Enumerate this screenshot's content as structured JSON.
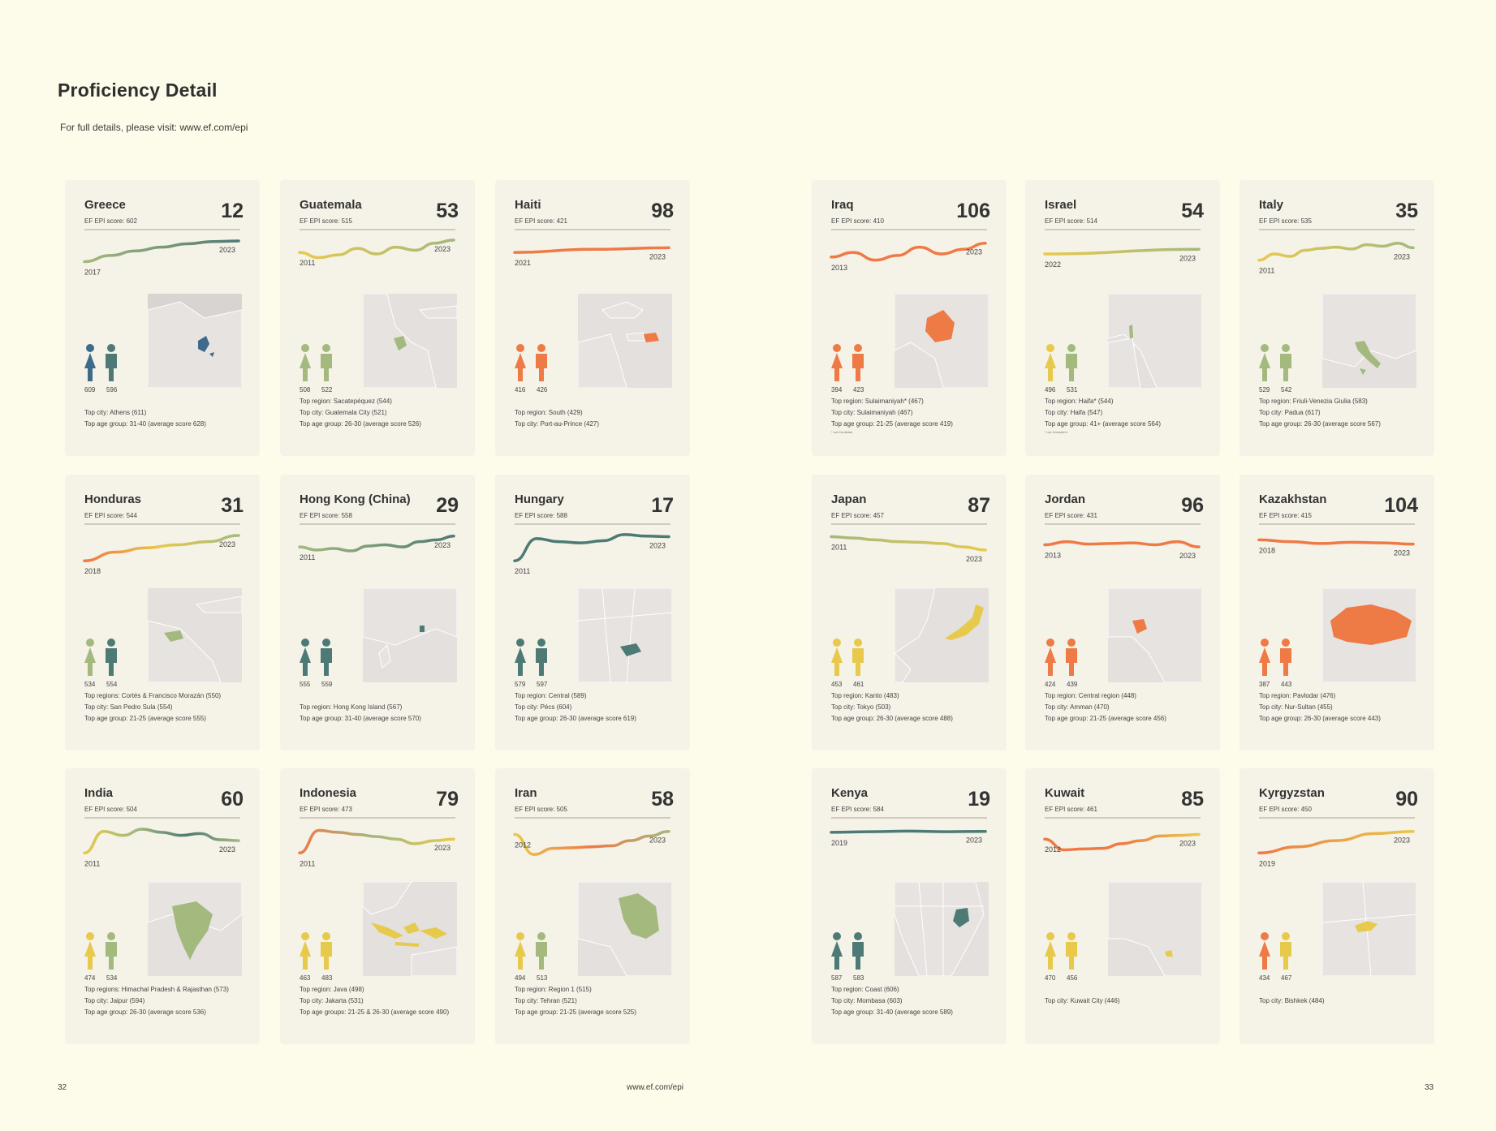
{
  "header": {
    "title": "Proficiency Detail",
    "subtitle": "For full details, please visit: www.ef.com/epi"
  },
  "footer": {
    "page_left": "32",
    "url": "www.ef.com/epi",
    "page_right": "33"
  },
  "colors": {
    "dark_teal": "#4e7a75",
    "blue": "#3e6b8a",
    "green": "#a3b97d",
    "yellow": "#e7c94c",
    "orange": "#ee7a45",
    "card_bg": "#f5f2e7",
    "map_land": "#e3e0de"
  },
  "cards": [
    {
      "id": "greece",
      "name": "Greece",
      "score": "EF EPI score: 602",
      "rank": "12",
      "start_year": "2017",
      "end_year": "2023",
      "trend_levels": [
        0.25,
        0.45,
        0.6,
        0.72,
        0.83,
        0.9,
        0.92
      ],
      "trend_colors": [
        "green",
        "dark_teal"
      ],
      "female": "609",
      "male": "596",
      "female_color": "blue",
      "male_color": "dark_teal",
      "highlight_color": "blue",
      "info": [
        "Top city: Athens (611)",
        "Top age group: 31-40 (average score 628)"
      ],
      "note": ""
    },
    {
      "id": "guatemala",
      "name": "Guatemala",
      "score": "EF EPI score: 515",
      "rank": "53",
      "start_year": "2011",
      "end_year": "2023",
      "trend_levels": [
        0.55,
        0.38,
        0.47,
        0.68,
        0.5,
        0.72,
        0.62,
        0.85,
        0.95
      ],
      "trend_colors": [
        "yellow",
        "green"
      ],
      "female": "508",
      "male": "522",
      "female_color": "green",
      "male_color": "green",
      "highlight_color": "green",
      "info": [
        "Top region: Sacatepéquez (544)",
        "Top city: Guatemala City (521)",
        "Top age group: 26-30 (average score 526)"
      ],
      "note": ""
    },
    {
      "id": "haiti",
      "name": "Haiti",
      "score": "EF EPI score: 421",
      "rank": "98",
      "start_year": "2021",
      "end_year": "2023",
      "trend_levels": [
        0.55,
        0.65,
        0.7
      ],
      "trend_colors": [
        "orange",
        "orange"
      ],
      "female": "416",
      "male": "426",
      "female_color": "orange",
      "male_color": "orange",
      "highlight_color": "orange",
      "info": [
        "Top region: South (429)",
        "Top city: Port-au-Prince (427)"
      ],
      "note": ""
    },
    {
      "id": "iraq",
      "name": "Iraq",
      "score": "EF EPI score: 410",
      "rank": "106",
      "start_year": "2013",
      "end_year": "2023",
      "trend_levels": [
        0.4,
        0.55,
        0.3,
        0.45,
        0.72,
        0.5,
        0.65,
        0.85
      ],
      "trend_colors": [
        "orange",
        "orange"
      ],
      "female": "394",
      "male": "423",
      "female_color": "orange",
      "male_color": "orange",
      "highlight_color": "orange",
      "info": [
        "Top region: Sulaimaniyah* (467)",
        "Top city: Sulaimaniyah (467)",
        "Top age group: 21-25 (average score 419)"
      ],
      "note": "* not Kurdistan"
    },
    {
      "id": "israel",
      "name": "Israel",
      "score": "EF EPI score: 514",
      "rank": "54",
      "start_year": "2022",
      "end_year": "2023",
      "trend_levels": [
        0.5,
        0.65
      ],
      "trend_colors": [
        "yellow",
        "green"
      ],
      "female": "496",
      "male": "531",
      "female_color": "yellow",
      "male_color": "green",
      "highlight_color": "green",
      "info": [
        "Top region: Haifa* (544)",
        "Top city: Haifa (547)",
        "Top age group: 41+ (average score 564)"
      ],
      "note": "* not Jerusalem"
    },
    {
      "id": "italy",
      "name": "Italy",
      "score": "EF EPI score: 535",
      "rank": "35",
      "start_year": "2011",
      "end_year": "2023",
      "trend_levels": [
        0.3,
        0.5,
        0.42,
        0.62,
        0.68,
        0.72,
        0.66,
        0.8,
        0.75,
        0.85,
        0.7
      ],
      "trend_colors": [
        "yellow",
        "green"
      ],
      "female": "529",
      "male": "542",
      "female_color": "green",
      "male_color": "green",
      "highlight_color": "green",
      "info": [
        "Top region: Friuli-Venezia Giulia (583)",
        "Top city: Padua (617)",
        "Top age group: 26-30 (average score 567)"
      ],
      "note": ""
    },
    {
      "id": "honduras",
      "name": "Honduras",
      "score": "EF EPI score: 544",
      "rank": "31",
      "start_year": "2018",
      "end_year": "2023",
      "trend_levels": [
        0.1,
        0.38,
        0.52,
        0.62,
        0.72,
        0.92
      ],
      "trend_colors": [
        "orange",
        "yellow",
        "green"
      ],
      "female": "534",
      "male": "554",
      "female_color": "green",
      "male_color": "dark_teal",
      "highlight_color": "green",
      "info": [
        "Top regions: Cortés & Francisco Morazán (550)",
        "Top city: San Pedro Sula (554)",
        "Top age group: 21-25 (average score 555)"
      ],
      "note": ""
    },
    {
      "id": "hongkong",
      "name": "Hong Kong (China)",
      "score": "EF EPI score: 558",
      "rank": "29",
      "start_year": "2011",
      "end_year": "2023",
      "trend_levels": [
        0.55,
        0.45,
        0.5,
        0.42,
        0.58,
        0.62,
        0.55,
        0.72,
        0.78,
        0.9
      ],
      "trend_colors": [
        "green",
        "dark_teal"
      ],
      "female": "555",
      "male": "559",
      "female_color": "dark_teal",
      "male_color": "dark_teal",
      "highlight_color": "dark_teal",
      "info": [
        "Top region: Hong Kong Island (567)",
        "Top age group: 31-40 (average score 570)"
      ],
      "note": ""
    },
    {
      "id": "hungary",
      "name": "Hungary",
      "score": "EF EPI score: 588",
      "rank": "17",
      "start_year": "2011",
      "end_year": "2023",
      "trend_levels": [
        0.1,
        0.82,
        0.72,
        0.68,
        0.75,
        0.95,
        0.9,
        0.88
      ],
      "trend_colors": [
        "dark_teal",
        "dark_teal"
      ],
      "female": "579",
      "male": "597",
      "female_color": "dark_teal",
      "male_color": "dark_teal",
      "highlight_color": "dark_teal",
      "info": [
        "Top region: Central (589)",
        "Top city: Pécs (604)",
        "Top age group: 26-30 (average score 619)"
      ],
      "note": ""
    },
    {
      "id": "japan",
      "name": "Japan",
      "score": "EF EPI score: 457",
      "rank": "87",
      "start_year": "2011",
      "end_year": "2023",
      "trend_levels": [
        0.88,
        0.84,
        0.78,
        0.72,
        0.7,
        0.66,
        0.55,
        0.45
      ],
      "trend_colors": [
        "green",
        "yellow"
      ],
      "female": "453",
      "male": "461",
      "female_color": "yellow",
      "male_color": "yellow",
      "highlight_color": "yellow",
      "info": [
        "Top region: Kanto (483)",
        "Top city: Tokyo (503)",
        "Top age group: 26-30 (average score 488)"
      ],
      "note": ""
    },
    {
      "id": "jordan",
      "name": "Jordan",
      "score": "EF EPI score: 431",
      "rank": "96",
      "start_year": "2013",
      "end_year": "2023",
      "trend_levels": [
        0.62,
        0.72,
        0.64,
        0.66,
        0.68,
        0.62,
        0.72,
        0.55
      ],
      "trend_colors": [
        "orange",
        "orange"
      ],
      "female": "424",
      "male": "439",
      "female_color": "orange",
      "male_color": "orange",
      "highlight_color": "orange",
      "info": [
        "Top region: Central region (448)",
        "Top city: Amman (470)",
        "Top age group: 21-25 (average score 456)"
      ],
      "note": ""
    },
    {
      "id": "kazakhstan",
      "name": "Kazakhstan",
      "score": "EF EPI score: 415",
      "rank": "104",
      "start_year": "2018",
      "end_year": "2023",
      "trend_levels": [
        0.78,
        0.72,
        0.66,
        0.7,
        0.68,
        0.64
      ],
      "trend_colors": [
        "orange",
        "orange"
      ],
      "female": "387",
      "male": "443",
      "female_color": "orange",
      "male_color": "orange",
      "highlight_color": "orange",
      "info": [
        "Top region: Pavlodar (476)",
        "Top city: Nur-Sultan (455)",
        "Top age group: 26-30 (average score 443)"
      ],
      "note": ""
    },
    {
      "id": "india",
      "name": "India",
      "score": "EF EPI score: 504",
      "rank": "60",
      "start_year": "2011",
      "end_year": "2023",
      "trend_levels": [
        0.15,
        0.85,
        0.72,
        0.92,
        0.82,
        0.72,
        0.78,
        0.58,
        0.55
      ],
      "trend_colors": [
        "yellow",
        "green",
        "dark_teal",
        "green"
      ],
      "female": "474",
      "male": "534",
      "female_color": "yellow",
      "male_color": "green",
      "highlight_color": "green",
      "info": [
        "Top regions: Himachal Pradesh & Rajasthan (573)",
        "Top city: Jaipur (594)",
        "Top age group: 26-30 (average score 536)"
      ],
      "note": ""
    },
    {
      "id": "indonesia",
      "name": "Indonesia",
      "score": "EF EPI score: 473",
      "rank": "79",
      "start_year": "2011",
      "end_year": "2023",
      "trend_levels": [
        0.15,
        0.88,
        0.82,
        0.75,
        0.68,
        0.6,
        0.45,
        0.55,
        0.6
      ],
      "trend_colors": [
        "orange",
        "green",
        "yellow"
      ],
      "female": "463",
      "male": "483",
      "female_color": "yellow",
      "male_color": "yellow",
      "highlight_color": "yellow",
      "info": [
        "Top region: Java (498)",
        "Top city: Jakarta (531)",
        "Top age groups: 21-25 & 26-30 (average score 490)"
      ],
      "note": ""
    },
    {
      "id": "iran",
      "name": "Iran",
      "score": "EF EPI score: 505",
      "rank": "58",
      "start_year": "2012",
      "end_year": "2023",
      "trend_levels": [
        0.75,
        0.1,
        0.3,
        0.32,
        0.35,
        0.38,
        0.55,
        0.7,
        0.85
      ],
      "trend_colors": [
        "yellow",
        "orange",
        "green"
      ],
      "female": "494",
      "male": "513",
      "female_color": "yellow",
      "male_color": "green",
      "highlight_color": "green",
      "info": [
        "Top region: Region 1 (515)",
        "Top city: Tehran (521)",
        "Top age group: 21-25 (average score 525)"
      ],
      "note": ""
    },
    {
      "id": "kenya",
      "name": "Kenya",
      "score": "EF EPI score: 584",
      "rank": "19",
      "start_year": "2019",
      "end_year": "2023",
      "trend_levels": [
        0.82,
        0.84,
        0.86,
        0.84,
        0.85
      ],
      "trend_colors": [
        "dark_teal",
        "dark_teal"
      ],
      "female": "587",
      "male": "583",
      "female_color": "dark_teal",
      "male_color": "dark_teal",
      "highlight_color": "dark_teal",
      "info": [
        "Top region: Coast (606)",
        "Top city: Mombasa (603)",
        "Top age group: 31-40 (average score 589)"
      ],
      "note": ""
    },
    {
      "id": "kuwait",
      "name": "Kuwait",
      "score": "EF EPI score: 461",
      "rank": "85",
      "start_year": "2012",
      "end_year": "2023",
      "trend_levels": [
        0.6,
        0.25,
        0.28,
        0.3,
        0.45,
        0.55,
        0.7,
        0.72,
        0.75
      ],
      "trend_colors": [
        "orange",
        "orange",
        "yellow"
      ],
      "female": "470",
      "male": "456",
      "female_color": "yellow",
      "male_color": "yellow",
      "highlight_color": "yellow",
      "info": [
        "Top city: Kuwait City (446)"
      ],
      "note": ""
    },
    {
      "id": "kyrgyzstan",
      "name": "Kyrgyzstan",
      "score": "EF EPI score: 450",
      "rank": "90",
      "start_year": "2019",
      "end_year": "2023",
      "trend_levels": [
        0.15,
        0.35,
        0.55,
        0.78,
        0.85
      ],
      "trend_colors": [
        "orange",
        "yellow"
      ],
      "female": "434",
      "male": "467",
      "female_color": "orange",
      "male_color": "yellow",
      "highlight_color": "yellow",
      "info": [
        "Top city: Bishkek (484)"
      ],
      "note": ""
    }
  ]
}
